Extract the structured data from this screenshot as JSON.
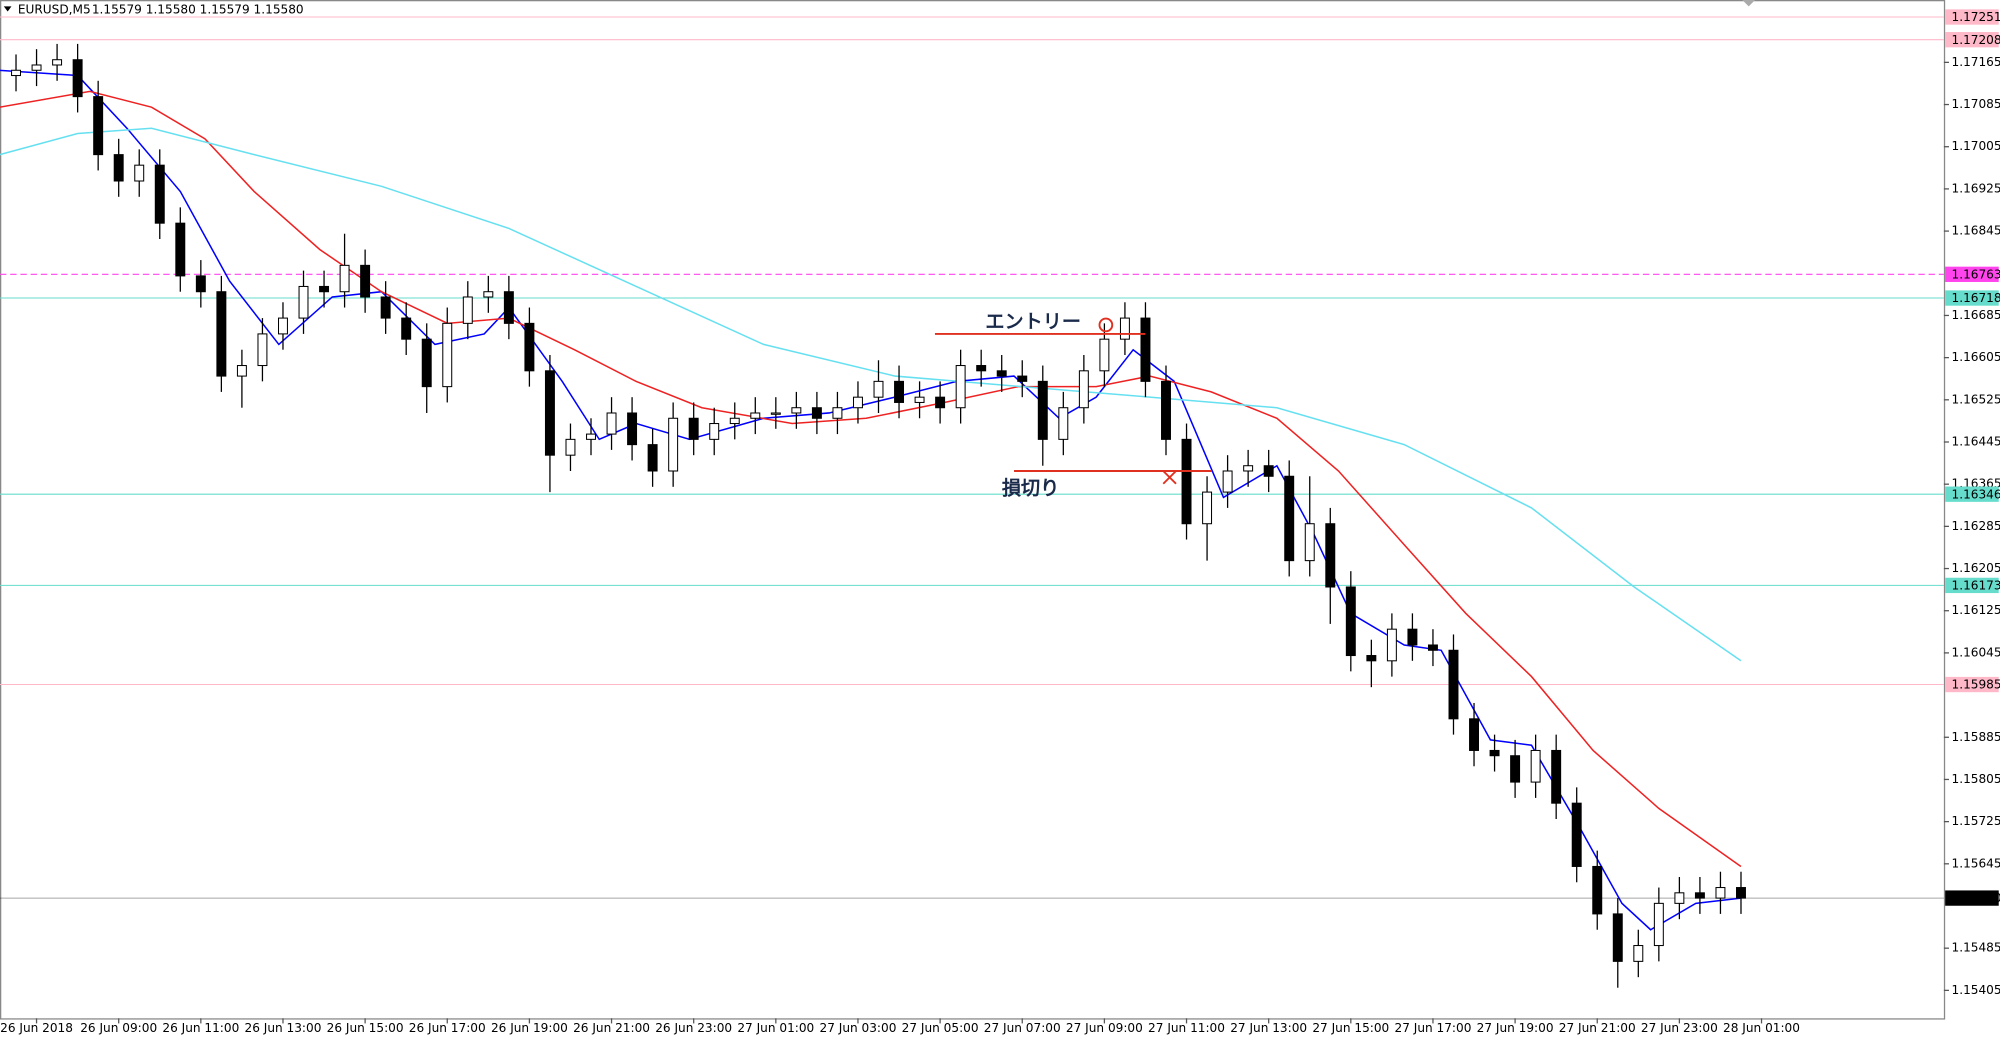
{
  "chart_data": {
    "type": "candlestick",
    "symbol": "EURUSD,M5",
    "ohlc_text": "1.15579 1.15580 1.15579 1.15580",
    "xlim": [
      6.11,
      53.44
    ],
    "ylim": [
      1.15352,
      1.17276
    ],
    "xticks": [
      {
        "value": 7,
        "label": "26 Jun 2018"
      },
      {
        "value": 9,
        "label": "26 Jun 09:00"
      },
      {
        "value": 11,
        "label": "26 Jun 11:00"
      },
      {
        "value": 13,
        "label": "26 Jun 13:00"
      },
      {
        "value": 15,
        "label": "26 Jun 15:00"
      },
      {
        "value": 17,
        "label": "26 Jun 17:00"
      },
      {
        "value": 19,
        "label": "26 Jun 19:00"
      },
      {
        "value": 21,
        "label": "26 Jun 21:00"
      },
      {
        "value": 23,
        "label": "26 Jun 23:00"
      },
      {
        "value": 25,
        "label": "27 Jun 01:00"
      },
      {
        "value": 27,
        "label": "27 Jun 03:00"
      },
      {
        "value": 29,
        "label": "27 Jun 05:00"
      },
      {
        "value": 31,
        "label": "27 Jun 07:00"
      },
      {
        "value": 33,
        "label": "27 Jun 09:00"
      },
      {
        "value": 35,
        "label": "27 Jun 11:00"
      },
      {
        "value": 37,
        "label": "27 Jun 13:00"
      },
      {
        "value": 39,
        "label": "27 Jun 15:00"
      },
      {
        "value": 41,
        "label": "27 Jun 17:00"
      },
      {
        "value": 43,
        "label": "27 Jun 19:00"
      },
      {
        "value": 45,
        "label": "27 Jun 21:00"
      },
      {
        "value": 47,
        "label": "27 Jun 23:00"
      },
      {
        "value": 49,
        "label": "28 Jun 01:00"
      }
    ],
    "yticks": [
      1.17165,
      1.17085,
      1.17005,
      1.16925,
      1.16845,
      1.16685,
      1.16605,
      1.16525,
      1.16445,
      1.16365,
      1.16285,
      1.16205,
      1.16125,
      1.16045,
      1.15885,
      1.15805,
      1.15725,
      1.15645,
      1.15485,
      1.15405
    ],
    "x": [
      6.5,
      7,
      7.5,
      8,
      8.5,
      9,
      9.5,
      10,
      10.5,
      11,
      11.5,
      12,
      12.5,
      13,
      13.5,
      14,
      14.5,
      15,
      15.5,
      16,
      16.5,
      17,
      17.5,
      18,
      18.5,
      19,
      19.5,
      20,
      20.5,
      21,
      21.5,
      22,
      22.5,
      23,
      23.5,
      24,
      24.5,
      25,
      25.5,
      26,
      26.5,
      27,
      27.5,
      28,
      28.5,
      29,
      29.5,
      30,
      30.5,
      31,
      31.5,
      32,
      32.5,
      33,
      33.5,
      34,
      34.5,
      35,
      35.5,
      36,
      36.5,
      37,
      37.5,
      38,
      38.5,
      39,
      39.5,
      40,
      40.5,
      41,
      41.5,
      42,
      42.5,
      43,
      43.5,
      44,
      44.5,
      45,
      45.5,
      46,
      46.5,
      47,
      47.5,
      48,
      48.5
    ],
    "open": [
      1.1714,
      1.1715,
      1.1716,
      1.1717,
      1.171,
      1.1699,
      1.1694,
      1.1697,
      1.1686,
      1.1676,
      1.1673,
      1.1657,
      1.1659,
      1.1665,
      1.1668,
      1.1674,
      1.1673,
      1.1678,
      1.1672,
      1.1668,
      1.1664,
      1.1655,
      1.1667,
      1.1672,
      1.1673,
      1.1667,
      1.1658,
      1.1642,
      1.1645,
      1.1646,
      1.165,
      1.1644,
      1.1639,
      1.1649,
      1.1645,
      1.1648,
      1.1649,
      1.165,
      1.165,
      1.1651,
      1.1649,
      1.1651,
      1.1653,
      1.1656,
      1.1652,
      1.1653,
      1.1651,
      1.1659,
      1.1658,
      1.1657,
      1.1656,
      1.1645,
      1.1651,
      1.1658,
      1.1664,
      1.1668,
      1.1656,
      1.1645,
      1.1629,
      1.1635,
      1.1639,
      1.164,
      1.1638,
      1.1622,
      1.1629,
      1.1617,
      1.1604,
      1.1603,
      1.1609,
      1.1606,
      1.1605,
      1.1592,
      1.1586,
      1.1585,
      1.158,
      1.1586,
      1.1576,
      1.1564,
      1.1555,
      1.1546,
      1.1549,
      1.1557,
      1.1559,
      1.1558,
      1.156
    ],
    "high": [
      1.1718,
      1.1719,
      1.172,
      1.172,
      1.1713,
      1.1702,
      1.17,
      1.17,
      1.1689,
      1.1679,
      1.1676,
      1.1662,
      1.1668,
      1.1671,
      1.1677,
      1.1677,
      1.1684,
      1.1681,
      1.1675,
      1.1671,
      1.1667,
      1.167,
      1.1675,
      1.1676,
      1.1676,
      1.167,
      1.1661,
      1.1648,
      1.1649,
      1.1653,
      1.1653,
      1.1647,
      1.1652,
      1.1652,
      1.1651,
      1.1652,
      1.1653,
      1.1653,
      1.1654,
      1.1654,
      1.1654,
      1.1656,
      1.166,
      1.1659,
      1.1656,
      1.1656,
      1.1662,
      1.1662,
      1.1661,
      1.166,
      1.1659,
      1.1654,
      1.1661,
      1.1667,
      1.1671,
      1.1671,
      1.1659,
      1.1648,
      1.1638,
      1.1642,
      1.1643,
      1.1643,
      1.1641,
      1.1638,
      1.1632,
      1.162,
      1.1607,
      1.1612,
      1.1612,
      1.1609,
      1.1608,
      1.1595,
      1.1589,
      1.1588,
      1.1589,
      1.1589,
      1.1579,
      1.1567,
      1.1558,
      1.1552,
      1.156,
      1.1562,
      1.1562,
      1.1563,
      1.1563
    ],
    "low": [
      1.1711,
      1.1712,
      1.1713,
      1.1707,
      1.1696,
      1.1691,
      1.1691,
      1.1683,
      1.1673,
      1.167,
      1.1654,
      1.1651,
      1.1656,
      1.1662,
      1.1665,
      1.167,
      1.167,
      1.1669,
      1.1665,
      1.1661,
      1.165,
      1.1652,
      1.1664,
      1.1669,
      1.1664,
      1.1655,
      1.1635,
      1.1639,
      1.1642,
      1.1643,
      1.1641,
      1.1636,
      1.1636,
      1.1642,
      1.1642,
      1.1645,
      1.1646,
      1.1647,
      1.1647,
      1.1646,
      1.1646,
      1.1648,
      1.165,
      1.1649,
      1.1649,
      1.1648,
      1.1648,
      1.1655,
      1.1654,
      1.1653,
      1.164,
      1.1642,
      1.1648,
      1.1655,
      1.1661,
      1.1653,
      1.1642,
      1.1626,
      1.1622,
      1.1632,
      1.1636,
      1.1635,
      1.1619,
      1.1619,
      1.161,
      1.1601,
      1.1598,
      1.16,
      1.1603,
      1.1602,
      1.1589,
      1.1583,
      1.1582,
      1.1577,
      1.1577,
      1.1573,
      1.1561,
      1.1552,
      1.1541,
      1.1543,
      1.1546,
      1.1554,
      1.1555,
      1.1555,
      1.1555
    ],
    "close": [
      1.1715,
      1.1716,
      1.1717,
      1.171,
      1.1699,
      1.1694,
      1.1697,
      1.1686,
      1.1676,
      1.1673,
      1.1657,
      1.1659,
      1.1665,
      1.1668,
      1.1674,
      1.1673,
      1.1678,
      1.1672,
      1.1668,
      1.1664,
      1.1655,
      1.1667,
      1.1672,
      1.1673,
      1.1667,
      1.1658,
      1.1642,
      1.1645,
      1.1646,
      1.165,
      1.1644,
      1.1639,
      1.1649,
      1.1645,
      1.1648,
      1.1649,
      1.165,
      1.165,
      1.1651,
      1.1649,
      1.1651,
      1.1653,
      1.1656,
      1.1652,
      1.1653,
      1.1651,
      1.1659,
      1.1658,
      1.1657,
      1.1656,
      1.1645,
      1.1651,
      1.1658,
      1.1664,
      1.1668,
      1.1656,
      1.1645,
      1.1629,
      1.1635,
      1.1639,
      1.164,
      1.1638,
      1.1622,
      1.1629,
      1.1617,
      1.1604,
      1.1603,
      1.1609,
      1.1606,
      1.1605,
      1.1592,
      1.1586,
      1.1585,
      1.158,
      1.1586,
      1.1576,
      1.1564,
      1.1555,
      1.1546,
      1.1549,
      1.1557,
      1.1559,
      1.1558,
      1.156,
      1.1558
    ],
    "lines": [
      {
        "color": "#0000ff",
        "x": [
          6.1,
          8.0,
          9.2,
          10.5,
          11.7,
          12.9,
          14.2,
          15.4,
          16.7,
          17.9,
          18.5,
          19.8,
          20.7,
          21.6,
          22.9,
          24.7,
          26.3,
          27.9,
          29.4,
          30.8,
          31.9,
          32.8,
          33.7,
          34.7,
          35.3,
          35.9,
          37.2,
          38.1,
          39.0,
          40.3,
          41.2,
          42.4,
          43.4,
          44.6,
          45.6,
          46.3,
          47.4,
          48.5
        ],
        "values": [
          1.1715,
          1.1714,
          1.1704,
          1.1692,
          1.1675,
          1.1663,
          1.1672,
          1.1673,
          1.1663,
          1.1665,
          1.167,
          1.1656,
          1.1645,
          1.1648,
          1.1645,
          1.1649,
          1.165,
          1.1653,
          1.1656,
          1.1657,
          1.1649,
          1.1653,
          1.1662,
          1.1656,
          1.1645,
          1.1634,
          1.164,
          1.1627,
          1.1612,
          1.1606,
          1.1605,
          1.1588,
          1.1587,
          1.1571,
          1.1557,
          1.1552,
          1.1557,
          1.1558
        ]
      },
      {
        "color": "#ee2222",
        "x": [
          6.1,
          8.3,
          9.8,
          11.1,
          12.3,
          13.9,
          15.4,
          17.0,
          18.5,
          20.1,
          21.6,
          23.2,
          25.4,
          27.2,
          29.1,
          30.9,
          32.8,
          34.1,
          35.6,
          37.2,
          38.7,
          40.3,
          41.8,
          43.4,
          44.9,
          46.5,
          48.5
        ],
        "values": [
          1.1708,
          1.1711,
          1.1708,
          1.1702,
          1.1692,
          1.1681,
          1.1673,
          1.1667,
          1.1668,
          1.1662,
          1.1656,
          1.1651,
          1.1648,
          1.1649,
          1.1652,
          1.1655,
          1.1655,
          1.1657,
          1.1654,
          1.1649,
          1.1639,
          1.1625,
          1.1612,
          1.16,
          1.1586,
          1.1575,
          1.1564
        ]
      },
      {
        "color": "#66e0f0",
        "x": [
          6.1,
          8.0,
          9.8,
          12.3,
          15.4,
          18.5,
          21.6,
          24.7,
          27.9,
          31.0,
          34.1,
          37.2,
          40.3,
          43.4,
          45.9,
          48.5
        ],
        "values": [
          1.1699,
          1.1703,
          1.1704,
          1.1699,
          1.1693,
          1.1685,
          1.1674,
          1.1663,
          1.1657,
          1.1655,
          1.1653,
          1.1651,
          1.1644,
          1.1632,
          1.1617,
          1.1603
        ]
      }
    ],
    "levels": [
      {
        "value": 1.17251,
        "color": "#ffb8c8"
      },
      {
        "value": 1.17208,
        "color": "#ffb8c8"
      },
      {
        "value": 1.16763,
        "color": "#ff44ee",
        "dashed": true
      },
      {
        "value": 1.16718,
        "color": "#66ddcc"
      },
      {
        "value": 1.16346,
        "color": "#66ddcc"
      },
      {
        "value": 1.16173,
        "color": "#66ddcc"
      },
      {
        "value": 1.15985,
        "color": "#ffb8c8"
      },
      {
        "value": 1.1558,
        "label": "1.15580",
        "color": "#000000"
      }
    ],
    "annotations": [
      {
        "text": "エントリー",
        "value": 1.1665
      },
      {
        "text": "損切り",
        "value": 1.1639
      }
    ]
  }
}
